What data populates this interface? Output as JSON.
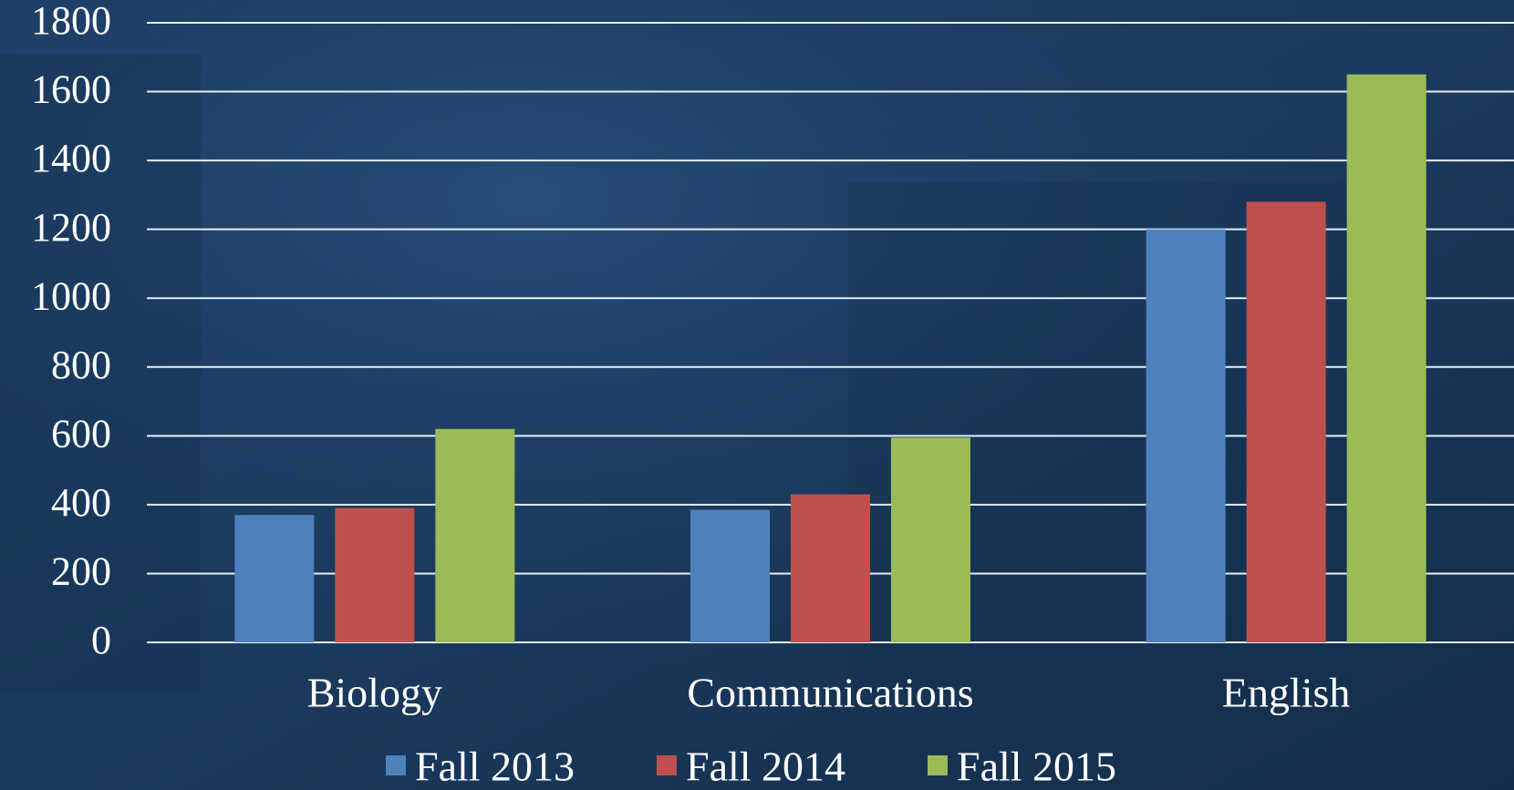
{
  "chart_data": {
    "type": "bar",
    "categories": [
      "Biology",
      "Communications",
      "English"
    ],
    "series": [
      {
        "name": "Fall 2013",
        "color": "#4f81bd",
        "values": [
          370,
          385,
          1200
        ]
      },
      {
        "name": "Fall 2014",
        "color": "#c0504d",
        "values": [
          390,
          430,
          1280
        ]
      },
      {
        "name": "Fall 2015",
        "color": "#9bbb59",
        "values": [
          620,
          595,
          1650
        ]
      }
    ],
    "ylim": [
      0,
      1800
    ],
    "yticks": [
      0,
      200,
      400,
      600,
      800,
      1000,
      1200,
      1400,
      1600,
      1800
    ],
    "grid": true,
    "legend": "bottom"
  }
}
